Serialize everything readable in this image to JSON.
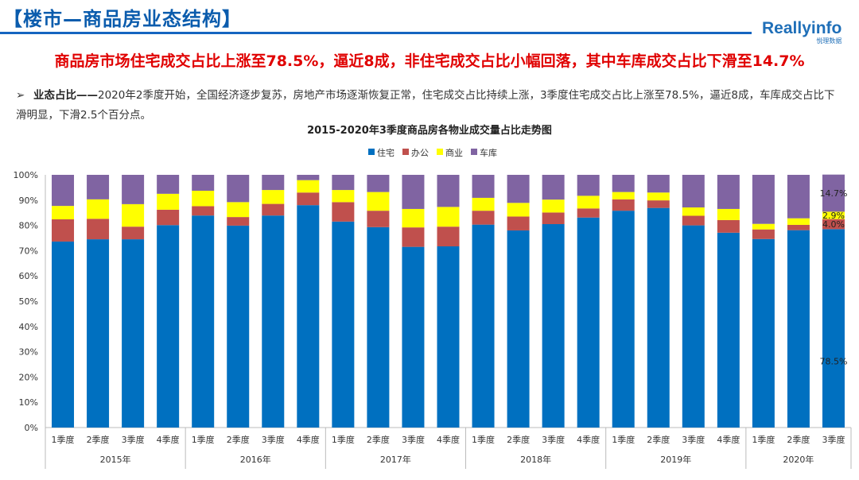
{
  "header": {
    "title": "【楼市—商品房业态结构】",
    "logo_text": "Reallyinfo",
    "logo_subtext": "悦理数据"
  },
  "headline": "商品房市场住宅成交占比上涨至78.5%，逼近8成，非住宅成交占比小幅回落，其中车库成交占比下滑至14.7%",
  "bullet": {
    "arrow": "➢",
    "key": "业态占比——",
    "text": "2020年2季度开始，全国经济逐步复苏，房地产市场逐渐恢复正常，住宅成交占比持续上涨，3季度住宅成交占比上涨至78.5%，逼近8成，车库成交占比下滑明显，下滑2.5个百分点。"
  },
  "chart_data": {
    "type": "bar",
    "stacked": true,
    "title": "2015-2020年3季度商品房各物业成交量占比走势图",
    "legend_position": "top",
    "ylim": [
      0,
      100
    ],
    "yticks": [
      "0%",
      "10%",
      "20%",
      "30%",
      "40%",
      "50%",
      "60%",
      "70%",
      "80%",
      "90%",
      "100%"
    ],
    "groups": [
      {
        "year": "2015年",
        "quarters": [
          "1季度",
          "2季度",
          "3季度",
          "4季度"
        ]
      },
      {
        "year": "2016年",
        "quarters": [
          "1季度",
          "2季度",
          "3季度",
          "4季度"
        ]
      },
      {
        "year": "2017年",
        "quarters": [
          "1季度",
          "2季度",
          "3季度",
          "4季度"
        ]
      },
      {
        "year": "2018年",
        "quarters": [
          "1季度",
          "2季度",
          "3季度",
          "4季度"
        ]
      },
      {
        "year": "2019年",
        "quarters": [
          "1季度",
          "2季度",
          "3季度",
          "4季度"
        ]
      },
      {
        "year": "2020年",
        "quarters": [
          "1季度",
          "2季度",
          "3季度"
        ]
      }
    ],
    "series": [
      {
        "name": "住宅",
        "color": "#0070c0",
        "values": [
          73.6,
          74.5,
          74.5,
          80.1,
          83.9,
          79.9,
          83.9,
          88.0,
          81.5,
          79.3,
          71.5,
          71.7,
          80.3,
          78.0,
          80.5,
          83.1,
          85.8,
          86.9,
          80.0,
          77.1,
          74.6,
          78.1,
          78.5
        ]
      },
      {
        "name": "办公",
        "color": "#c0504d",
        "values": [
          8.8,
          8.1,
          5.0,
          6.1,
          3.7,
          3.4,
          4.6,
          5.0,
          7.7,
          6.5,
          7.7,
          7.8,
          5.5,
          5.5,
          4.6,
          3.6,
          4.5,
          3.0,
          3.8,
          5.0,
          3.8,
          2.1,
          4.0
        ]
      },
      {
        "name": "商业",
        "color": "#ffff00",
        "values": [
          5.3,
          7.7,
          8.9,
          6.3,
          6.1,
          5.9,
          5.5,
          4.9,
          4.8,
          7.4,
          7.3,
          7.8,
          5.1,
          5.4,
          5.1,
          5.0,
          2.9,
          3.1,
          3.3,
          4.4,
          2.2,
          2.6,
          2.9
        ]
      },
      {
        "name": "车库",
        "color": "#8064a2",
        "values": [
          12.3,
          9.7,
          11.6,
          7.5,
          6.3,
          10.8,
          6.0,
          2.1,
          6.0,
          6.8,
          13.5,
          12.7,
          9.1,
          11.1,
          9.8,
          8.3,
          6.8,
          7.0,
          12.9,
          13.5,
          19.4,
          17.2,
          14.7
        ]
      }
    ],
    "data_labels": {
      "住宅": "78.5%",
      "办公": "4.0%",
      "商业": "2.9%",
      "车库": "14.7%"
    }
  }
}
